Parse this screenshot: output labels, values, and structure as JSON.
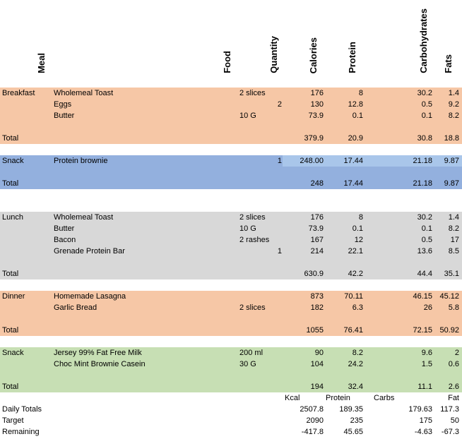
{
  "headers": {
    "meal": "Meal",
    "food": "Food",
    "quantity": "Quantity",
    "calories": "Calories",
    "protein": "Protein",
    "carbohydrates": "Carbohydrates",
    "fats": "Fats"
  },
  "colors": {
    "breakfast": "#f6c7a6",
    "snack1": "#93b0de",
    "lunch": "#d8d8d8",
    "dinner": "#f6c7a6",
    "snack2": "#c7dfb4"
  },
  "breakfast": {
    "meal": "Breakfast",
    "rows": [
      {
        "food": "Wholemeal Toast",
        "qty": "2 slices",
        "qnum": "",
        "cal": "176",
        "pro": "8",
        "carb": "30.2",
        "fat": "1.4"
      },
      {
        "food": "Eggs",
        "qty": "",
        "qnum": "2",
        "cal": "130",
        "pro": "12.8",
        "carb": "0.5",
        "fat": "9.2"
      },
      {
        "food": "Butter",
        "qty": "10 G",
        "qnum": "",
        "cal": "73.9",
        "pro": "0.1",
        "carb": "0.1",
        "fat": "8.2"
      }
    ],
    "total": {
      "label": "Total",
      "cal": "379.9",
      "pro": "20.9",
      "carb": "30.8",
      "fat": "18.8"
    }
  },
  "snack1": {
    "meal": "Snack",
    "rows": [
      {
        "food": "Protein brownie",
        "qty": "",
        "qnum": "1",
        "cal": "248.00",
        "pro": "17.44",
        "carb": "21.18",
        "fat": "9.87"
      }
    ],
    "total": {
      "label": "Total",
      "cal": "248",
      "pro": "17.44",
      "carb": "21.18",
      "fat": "9.87"
    }
  },
  "lunch": {
    "meal": "Lunch",
    "rows": [
      {
        "food": "Wholemeal Toast",
        "qty": "2 slices",
        "qnum": "",
        "cal": "176",
        "pro": "8",
        "carb": "30.2",
        "fat": "1.4"
      },
      {
        "food": "Butter",
        "qty": "10 G",
        "qnum": "",
        "cal": "73.9",
        "pro": "0.1",
        "carb": "0.1",
        "fat": "8.2"
      },
      {
        "food": "Bacon",
        "qty": "2 rashes",
        "qnum": "",
        "cal": "167",
        "pro": "12",
        "carb": "0.5",
        "fat": "17"
      },
      {
        "food": "Grenade Protein Bar",
        "qty": "",
        "qnum": "1",
        "cal": "214",
        "pro": "22.1",
        "carb": "13.6",
        "fat": "8.5"
      }
    ],
    "total": {
      "label": "Total",
      "cal": "630.9",
      "pro": "42.2",
      "carb": "44.4",
      "fat": "35.1"
    }
  },
  "dinner": {
    "meal": "Dinner",
    "rows": [
      {
        "food": "Homemade Lasagna",
        "qty": "",
        "qnum": "",
        "cal": "873",
        "pro": "70.11",
        "carb": "46.15",
        "fat": "45.12"
      },
      {
        "food": "Garlic Bread",
        "qty": "2 slices",
        "qnum": "",
        "cal": "182",
        "pro": "6.3",
        "carb": "26",
        "fat": "5.8"
      }
    ],
    "total": {
      "label": "Total",
      "cal": "1055",
      "pro": "76.41",
      "carb": "72.15",
      "fat": "50.92"
    }
  },
  "snack2": {
    "meal": "Snack",
    "rows": [
      {
        "food": "Jersey 99% Fat Free Milk",
        "qty": "200 ml",
        "qnum": "",
        "cal": "90",
        "pro": "8.2",
        "carb": "9.6",
        "fat": "2"
      },
      {
        "food": "Choc Mint Brownie Casein",
        "qty": "30 G",
        "qnum": "",
        "cal": "104",
        "pro": "24.2",
        "carb": "1.5",
        "fat": "0.6"
      }
    ],
    "total": {
      "label": "Total",
      "cal": "194",
      "pro": "32.4",
      "carb": "11.1",
      "fat": "2.6"
    }
  },
  "summary": {
    "labels": {
      "kcal": "Kcal",
      "protein": "Protein",
      "carbs": "Carbs",
      "fat": "Fat"
    },
    "rows": [
      {
        "label": "Daily Totals",
        "cal": "2507.8",
        "pro": "189.35",
        "carb": "179.63",
        "fat": "117.3"
      },
      {
        "label": "Target",
        "cal": "2090",
        "pro": "235",
        "carb": "175",
        "fat": "50"
      },
      {
        "label": "Remaining",
        "cal": "-417.8",
        "pro": "45.65",
        "carb": "-4.63",
        "fat": "-67.3"
      }
    ]
  }
}
